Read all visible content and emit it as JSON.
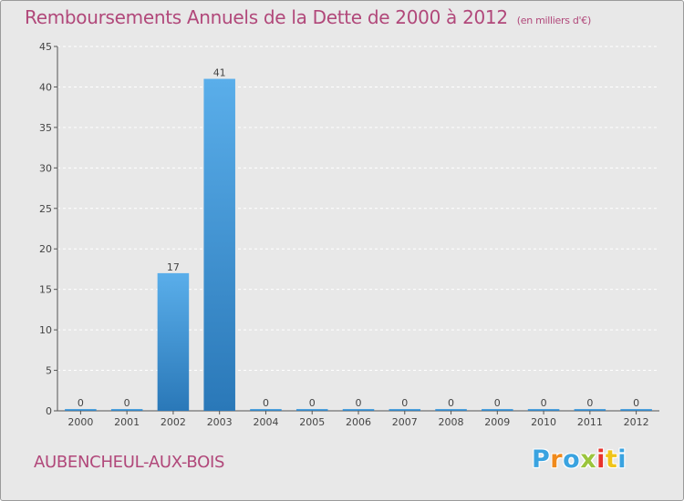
{
  "chart_data": {
    "type": "bar",
    "title": "Remboursements Annuels de la Dette de 2000 à 2012",
    "subtitle": "(en milliers d'€)",
    "categories": [
      "2000",
      "2001",
      "2002",
      "2003",
      "2004",
      "2005",
      "2006",
      "2007",
      "2008",
      "2009",
      "2010",
      "2011",
      "2012"
    ],
    "values": [
      0,
      0,
      17,
      41,
      0,
      0,
      0,
      0,
      0,
      0,
      0,
      0,
      0
    ],
    "ylim": [
      0,
      45
    ],
    "yticks": [
      0,
      5,
      10,
      15,
      20,
      25,
      30,
      35,
      40,
      45
    ],
    "xlabel": "",
    "ylabel": "",
    "grid": true,
    "bar_color": "#3b8fd6"
  },
  "footer": {
    "commune": "AUBENCHEUL-AUX-BOIS",
    "logo": [
      "P",
      "r",
      "o",
      "x",
      "i",
      "t",
      "i"
    ],
    "logo_colors": [
      "#3aa3e0",
      "#f08a1c",
      "#3aa3e0",
      "#9bc53d",
      "#e8332c",
      "#f0c419",
      "#3aa3e0"
    ]
  }
}
